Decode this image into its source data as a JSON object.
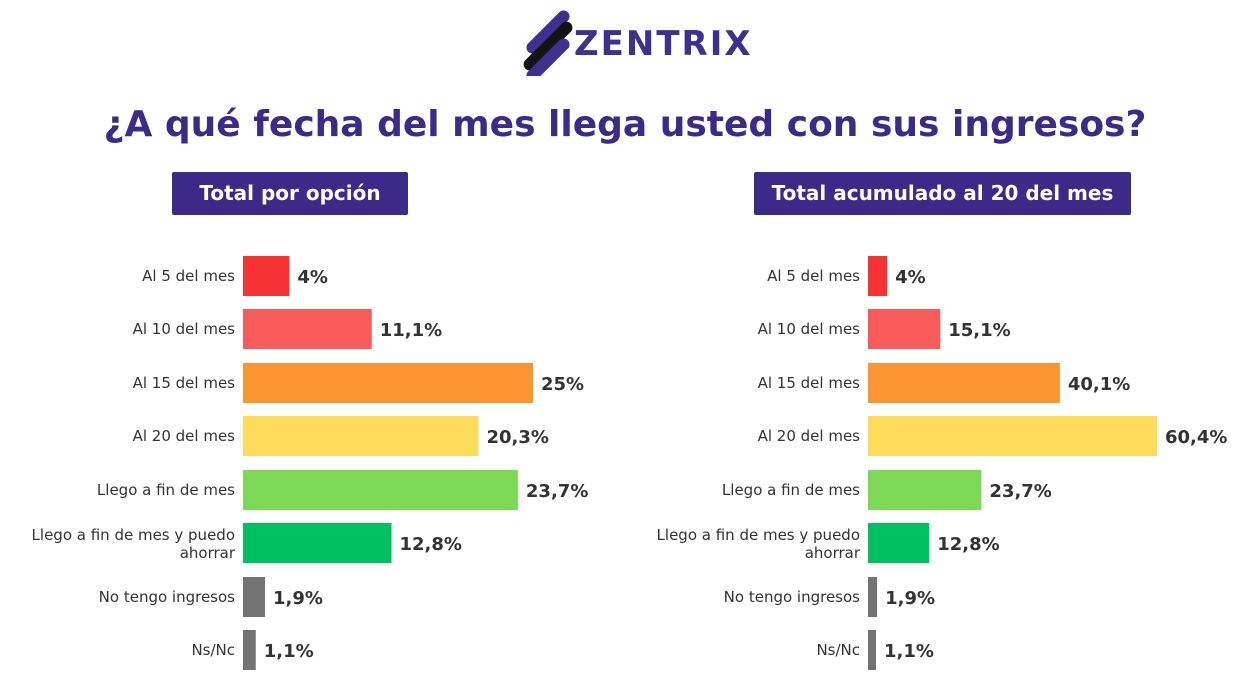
{
  "brand": {
    "name": "ZENTRIX",
    "color": "#3f2f8f"
  },
  "title": "¿A qué fecha del mes llega usted con sus ingresos?",
  "chart_data": [
    {
      "type": "bar",
      "orientation": "horizontal",
      "title": "Total por opción",
      "categories": [
        "Al 5 del mes",
        "Al 10 del mes",
        "Al 15 del mes",
        "Al 20 del mes",
        "Llego a fin de mes",
        "Llego a fin de mes y puedo ahorrar",
        "No tengo ingresos",
        "Ns/Nc"
      ],
      "values": [
        4,
        11.1,
        25,
        20.3,
        23.7,
        12.8,
        1.9,
        1.1
      ],
      "value_labels": [
        "4%",
        "11,1%",
        "25%",
        "20,3%",
        "23,7%",
        "12,8%",
        "1,9%",
        "1,1%"
      ],
      "colors": [
        "#f53333",
        "#f95a5a",
        "#fb9531",
        "#fddc5c",
        "#7ed957",
        "#00bf63",
        "#737373",
        "#737373"
      ],
      "xlim": [
        0,
        25
      ],
      "grid": false
    },
    {
      "type": "bar",
      "orientation": "horizontal",
      "title": "Total acumulado al 20 del mes",
      "categories": [
        "Al 5 del mes",
        "Al 10 del mes",
        "Al 15 del mes",
        "Al 20 del mes",
        "Llego a fin de mes",
        "Llego a fin de mes y puedo ahorrar",
        "No tengo ingresos",
        "Ns/Nc"
      ],
      "values": [
        4,
        15.1,
        40.1,
        60.4,
        23.7,
        12.8,
        1.9,
        1.1
      ],
      "value_labels": [
        "4%",
        "15,1%",
        "40,1%",
        "60,4%",
        "23,7%",
        "12,8%",
        "1,9%",
        "1,1%"
      ],
      "colors": [
        "#f53333",
        "#f95a5a",
        "#fb9531",
        "#fddc5c",
        "#7ed957",
        "#00bf63",
        "#737373",
        "#737373"
      ],
      "xlim": [
        0,
        60.4
      ],
      "grid": false
    }
  ]
}
